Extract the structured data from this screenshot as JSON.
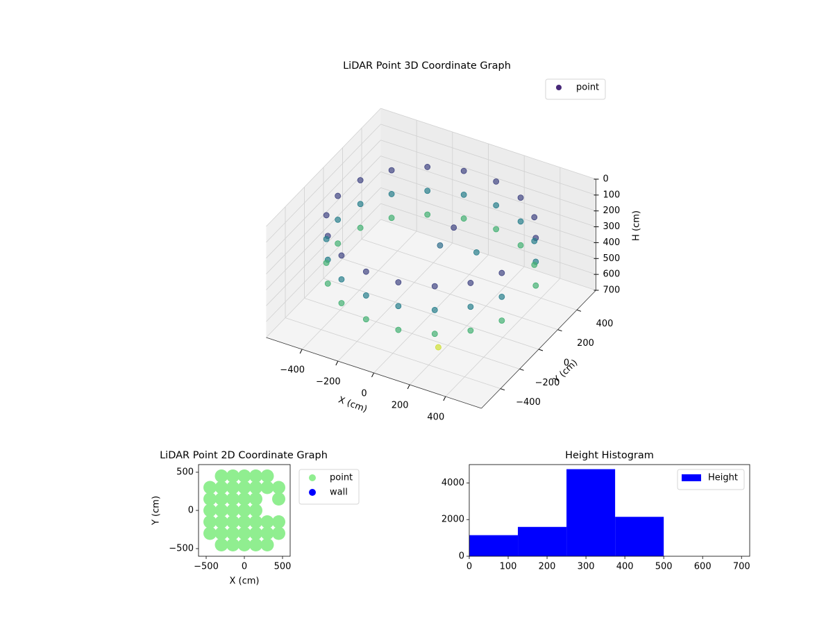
{
  "chart_data": [
    {
      "type": "scatter3d",
      "title": "LiDAR Point 3D Coordinate Graph",
      "xlabel": "X (cm)",
      "ylabel": "Y (cm)",
      "zlabel": "H (cm)",
      "xlim": [
        -600,
        600
      ],
      "ylim": [
        -600,
        600
      ],
      "zlim": [
        700,
        0
      ],
      "xticks": [
        {
          "value": -400,
          "label": "−400"
        },
        {
          "value": -200,
          "label": "−200"
        },
        0,
        200,
        400
      ],
      "yticks": [
        {
          "value": -400,
          "label": "−400"
        },
        {
          "value": -200,
          "label": "−200"
        },
        0,
        200,
        400
      ],
      "zticks": [
        0,
        100,
        200,
        300,
        400,
        500,
        600,
        700
      ],
      "colormap": "viridis",
      "legend": "upper right",
      "series": [
        {
          "name": "point",
          "color": "#482878",
          "x": [
            489,
            398,
            260,
            90,
            -90,
            -260,
            -398,
            -489,
            -520,
            -489,
            -398,
            -260,
            -90,
            90,
            260,
            398,
            489,
            489,
            398,
            260,
            90,
            -90,
            -260,
            -398,
            -489,
            -520,
            -489,
            -398,
            -260,
            -90,
            90,
            260,
            398,
            489,
            489,
            398,
            260,
            90,
            -90,
            -260,
            -398,
            -489,
            -520,
            -489,
            -398,
            -260,
            -90,
            90,
            260,
            398,
            489,
            100,
            50,
            200,
            200
          ],
          "y": [
            178,
            334,
            450,
            512,
            512,
            450,
            334,
            178,
            0,
            -178,
            -334,
            -450,
            -512,
            -512,
            -450,
            -334,
            -178,
            178,
            334,
            450,
            512,
            512,
            450,
            334,
            178,
            0,
            -178,
            -334,
            -450,
            -512,
            -512,
            -450,
            -334,
            -178,
            178,
            334,
            450,
            512,
            512,
            450,
            334,
            178,
            0,
            -178,
            -334,
            -450,
            -512,
            -512,
            -450,
            -334,
            -178,
            50,
            0,
            100,
            -300
          ],
          "h": [
            150,
            150,
            150,
            150,
            150,
            150,
            150,
            150,
            150,
            150,
            150,
            150,
            150,
            150,
            150,
            150,
            150,
            300,
            300,
            300,
            300,
            300,
            300,
            300,
            300,
            300,
            300,
            300,
            300,
            300,
            300,
            300,
            300,
            300,
            450,
            450,
            450,
            450,
            450,
            450,
            450,
            450,
            450,
            450,
            450,
            450,
            450,
            450,
            450,
            450,
            450,
            150,
            250,
            300,
            650
          ]
        }
      ]
    },
    {
      "type": "scatter",
      "title": "LiDAR Point 2D Coordinate Graph",
      "xlabel": "X (cm)",
      "ylabel": "Y (cm)",
      "xlim": [
        -600,
        600
      ],
      "ylim": [
        -600,
        600
      ],
      "xticks": [
        {
          "value": -500,
          "label": "−500"
        },
        0,
        500
      ],
      "yticks": [
        {
          "value": -500,
          "label": "−500"
        },
        0,
        500
      ],
      "legend": "outside upper left",
      "series": [
        {
          "name": "point",
          "color": "#90ee90",
          "x": [
            -300,
            -150,
            0,
            150,
            300,
            -450,
            -300,
            -150,
            0,
            150,
            300,
            450,
            -450,
            -300,
            -150,
            0,
            150,
            450,
            -450,
            -300,
            -150,
            0,
            150,
            -450,
            -300,
            -150,
            0,
            150,
            300,
            450,
            -450,
            -300,
            -150,
            0,
            150,
            300,
            450,
            -300,
            -150,
            0,
            150,
            300
          ],
          "y": [
            450,
            450,
            450,
            450,
            450,
            300,
            300,
            300,
            300,
            300,
            300,
            300,
            150,
            150,
            150,
            150,
            150,
            150,
            0,
            0,
            0,
            0,
            0,
            -150,
            -150,
            -150,
            -150,
            -150,
            -150,
            -150,
            -300,
            -300,
            -300,
            -300,
            -300,
            -300,
            -300,
            -450,
            -450,
            -450,
            -450,
            -450
          ]
        },
        {
          "name": "wall",
          "color": "#0000ff",
          "x": [],
          "y": []
        }
      ]
    },
    {
      "type": "histogram",
      "title": "Height Histogram",
      "bins": [
        0,
        125,
        250,
        375,
        500
      ],
      "counts": [
        1150,
        1600,
        4750,
        2150
      ],
      "name": "Height",
      "color": "#0000ff",
      "legend": "upper right",
      "xlim": [
        0,
        721
      ],
      "ylim": [
        0,
        5000
      ],
      "xticks": [
        0,
        100,
        200,
        300,
        400,
        500,
        600,
        700
      ],
      "yticks": [
        0,
        2000,
        4000
      ]
    }
  ]
}
